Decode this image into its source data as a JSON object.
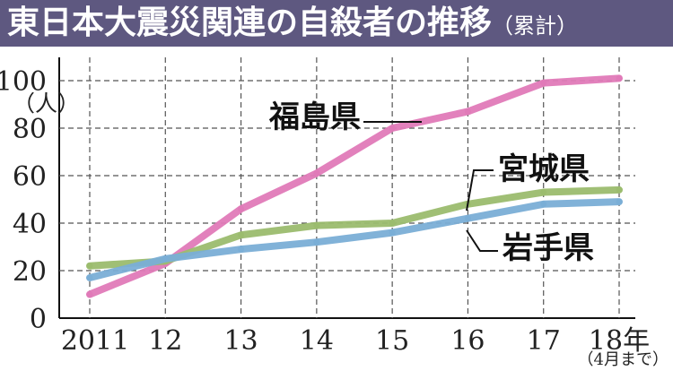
{
  "title": "東日本大震災関連の自殺者の推移",
  "subtitle": "（累計）",
  "chart_data": {
    "type": "line",
    "title": "東日本大震災関連の自殺者の推移（累計）",
    "ylabel": "（人）",
    "ylim": [
      0,
      100
    ],
    "yticks": [
      "0",
      "20",
      "40",
      "60",
      "80",
      "100"
    ],
    "categories": [
      "2011",
      "12",
      "13",
      "14",
      "15",
      "16",
      "17",
      "18年"
    ],
    "x_note": "（4月まで）",
    "grid": true,
    "series": [
      {
        "name": "福島県",
        "color": "#e07ab8",
        "values": [
          10,
          23,
          46,
          61,
          80,
          87,
          99,
          101
        ]
      },
      {
        "name": "宮城県",
        "color": "#9bbc6e",
        "values": [
          22,
          24,
          35,
          39,
          40,
          48,
          53,
          54
        ]
      },
      {
        "name": "岩手県",
        "color": "#7aaed6",
        "values": [
          17,
          25,
          29,
          32,
          36,
          42,
          48,
          49
        ]
      }
    ]
  }
}
